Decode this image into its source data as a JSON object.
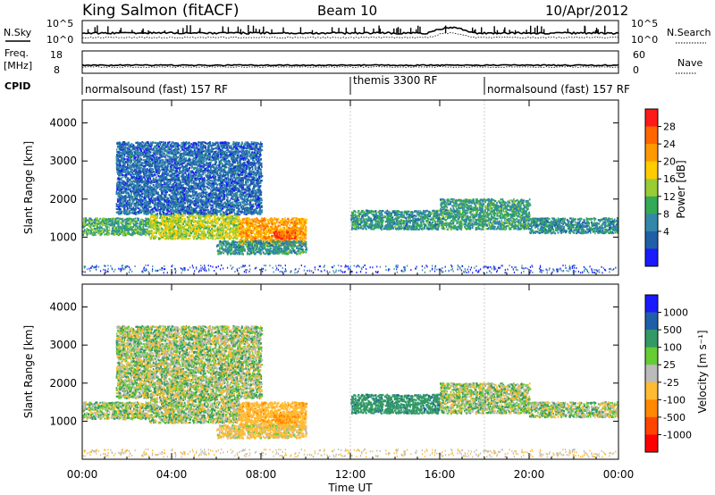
{
  "header": {
    "station": "King Salmon (fitACF)",
    "beam": "Beam 10",
    "date": "10/Apr/2012"
  },
  "noise_panel": {
    "left_label": "N.Sky",
    "right_label": "N.Search",
    "ticks": [
      "10^5",
      "10^0"
    ]
  },
  "freq_panel": {
    "label_top": "Freq.",
    "label_bottom": "[MHz]",
    "left_ticks": [
      "18",
      "8"
    ],
    "right_ticks": [
      "60",
      "0"
    ],
    "right_label": "Nave"
  },
  "cpid": {
    "label": "CPID",
    "segments": [
      {
        "start_h": 0,
        "end_h": 12,
        "text": "normalsound (fast) 157 RF"
      },
      {
        "start_h": 12,
        "end_h": 18,
        "text": "themis 3300 RF"
      },
      {
        "start_h": 18,
        "end_h": 24,
        "text": "normalsound (fast) 157 RF"
      }
    ]
  },
  "power_colorbar": {
    "label": "Power [dB]",
    "ticks": [
      "28",
      "24",
      "20",
      "16",
      "12",
      "8",
      "4"
    ],
    "colors": [
      "#ff1a1a",
      "#ff6600",
      "#ff9900",
      "#ffcc00",
      "#99cc33",
      "#33aa55",
      "#3388aa",
      "#1f5fa8",
      "#1a1aff"
    ]
  },
  "velocity_colorbar": {
    "label": "Velocity [m s⁻¹]",
    "ticks": [
      "1000",
      "500",
      "100",
      "25",
      "-25",
      "-100",
      "-500",
      "-1000"
    ],
    "colors": [
      "#1a1aff",
      "#1f5fa8",
      "#339966",
      "#66cc33",
      "#bbbbbb",
      "#ffbb33",
      "#ff8800",
      "#ff4400",
      "#ff0000"
    ]
  },
  "chart_data": {
    "type": "heatmap",
    "title": "King Salmon (fitACF) Beam 10 10/Apr/2012",
    "xlabel": "Time UT",
    "ylabel": "Slant Range [km]",
    "xlim": [
      0,
      24
    ],
    "ylim": [
      0,
      4600
    ],
    "x_ticks": [
      "00:00",
      "04:00",
      "08:00",
      "12:00",
      "16:00",
      "20:00",
      "00:00"
    ],
    "y_ticks": [
      "4000",
      "3000",
      "2000",
      "1000"
    ],
    "panels": [
      {
        "name": "Power [dB]",
        "range": [
          0,
          30
        ]
      },
      {
        "name": "Velocity [m s⁻¹]",
        "range": [
          -1000,
          1000
        ]
      }
    ],
    "echo_regions": [
      {
        "start_h": 0.0,
        "end_h": 3.0,
        "range_km": [
          1050,
          1500
        ],
        "power_db": 11,
        "velocity": 0
      },
      {
        "start_h": 3.0,
        "end_h": 7.0,
        "range_km": [
          950,
          1600
        ],
        "power_db": 16,
        "velocity": 0
      },
      {
        "start_h": 7.0,
        "end_h": 10.0,
        "range_km": [
          800,
          1500
        ],
        "power_db": 22,
        "velocity": -200
      },
      {
        "start_h": 8.5,
        "end_h": 9.5,
        "range_km": [
          950,
          1150
        ],
        "power_db": 28,
        "velocity": -300
      },
      {
        "start_h": 6.0,
        "end_h": 10.0,
        "range_km": [
          550,
          900
        ],
        "power_db": 9,
        "velocity": -100
      },
      {
        "start_h": 1.5,
        "end_h": 8.0,
        "range_km": [
          1600,
          3500
        ],
        "power_db": 5,
        "velocity": 0
      },
      {
        "start_h": 12.0,
        "end_h": 16.0,
        "range_km": [
          1200,
          1700
        ],
        "power_db": 9,
        "velocity": 200
      },
      {
        "start_h": 16.0,
        "end_h": 20.0,
        "range_km": [
          1200,
          2000
        ],
        "power_db": 10,
        "velocity": 0
      },
      {
        "start_h": 20.0,
        "end_h": 24.0,
        "range_km": [
          1100,
          1500
        ],
        "power_db": 8,
        "velocity": 0
      }
    ]
  }
}
